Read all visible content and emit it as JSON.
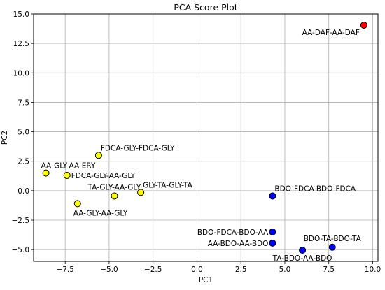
{
  "chart_data": {
    "type": "scatter",
    "title": "PCA Score Plot",
    "xlabel": "PC1",
    "ylabel": "PC2",
    "xlim": [
      -9.3,
      10.3
    ],
    "ylim": [
      -6.0,
      15.0
    ],
    "xticks": [
      -7.5,
      -5.0,
      -2.5,
      0.0,
      2.5,
      5.0,
      7.5,
      10.0
    ],
    "xtick_labels": [
      "−7.5",
      "−5.0",
      "−2.5",
      "0.0",
      "2.5",
      "5.0",
      "7.5",
      "10.0"
    ],
    "yticks": [
      -5.0,
      -2.5,
      0.0,
      2.5,
      5.0,
      7.5,
      10.0,
      12.5,
      15.0
    ],
    "ytick_labels": [
      "−5.0",
      "−2.5",
      "0.0",
      "2.5",
      "5.0",
      "7.5",
      "10.0",
      "12.5",
      "15.0"
    ],
    "grid": true,
    "colors": {
      "yellow": "#ffff00",
      "blue": "#0000ff",
      "red": "#ff0000",
      "edge": "#000000",
      "grid": "#b0b0b0"
    },
    "points": [
      {
        "label": "AA-DAF-AA-DAF",
        "x": 9.5,
        "y": 14.05,
        "color": "red",
        "anchor": "end",
        "side": "below-left"
      },
      {
        "label": "FDCA-GLY-FDCA-GLY",
        "x": -5.6,
        "y": 3.0,
        "color": "yellow",
        "anchor": "start",
        "side": "above-right"
      },
      {
        "label": "AA-GLY-AA-ERY",
        "x": -8.6,
        "y": 1.5,
        "color": "yellow",
        "anchor": "start",
        "side": "above-left"
      },
      {
        "label": "FDCA-GLY-AA-GLY",
        "x": -7.4,
        "y": 1.3,
        "color": "yellow",
        "anchor": "start",
        "side": "right"
      },
      {
        "label": "TA-GLY-AA-GLY",
        "x": -4.7,
        "y": -0.45,
        "color": "yellow",
        "anchor": "middle",
        "side": "above"
      },
      {
        "label": "GLY-TA-GLY-TA",
        "x": -3.2,
        "y": -0.15,
        "color": "yellow",
        "anchor": "start",
        "side": "above-right"
      },
      {
        "label": "AA-GLY-AA-GLY",
        "x": -6.8,
        "y": -1.1,
        "color": "yellow",
        "anchor": "start",
        "side": "below-right"
      },
      {
        "label": "BDO-FDCA-BDO-FDCA",
        "x": 4.3,
        "y": -0.45,
        "color": "blue",
        "anchor": "start",
        "side": "above-right"
      },
      {
        "label": "BDO-FDCA-BDO-AA",
        "x": 4.3,
        "y": -3.5,
        "color": "blue",
        "anchor": "end",
        "side": "left"
      },
      {
        "label": "AA-BDO-AA-BDO",
        "x": 4.3,
        "y": -4.45,
        "color": "blue",
        "anchor": "end",
        "side": "left"
      },
      {
        "label": "TA-BDO-AA-BDO",
        "x": 6.0,
        "y": -5.05,
        "color": "blue",
        "anchor": "middle",
        "side": "below"
      },
      {
        "label": "BDO-TA-BDO-TA",
        "x": 7.7,
        "y": -4.8,
        "color": "blue",
        "anchor": "middle",
        "side": "above"
      }
    ]
  }
}
